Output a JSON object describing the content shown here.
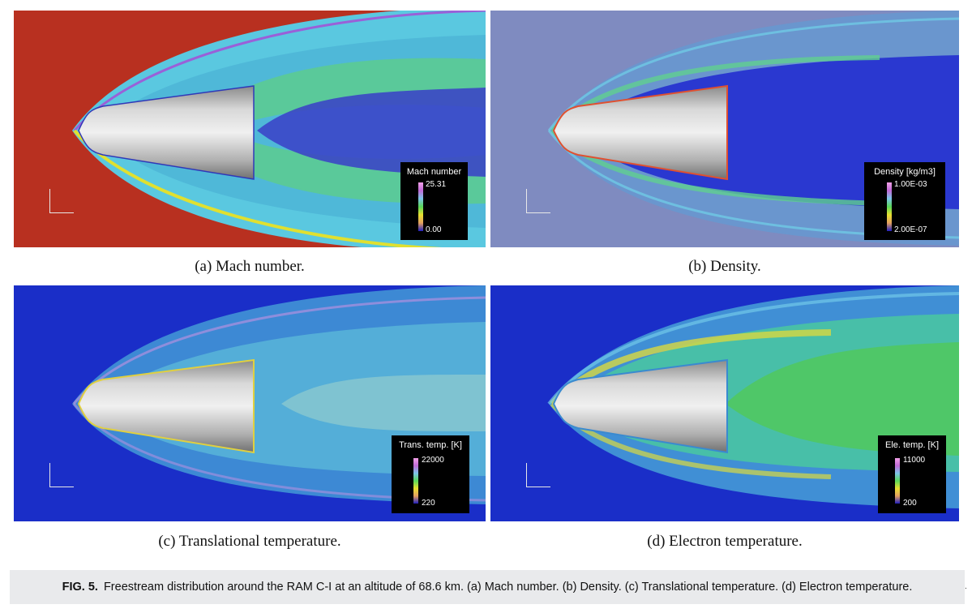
{
  "panels": [
    {
      "legend_title": "Mach number",
      "legend_max": "25.31",
      "legend_min": "0.00",
      "caption": "(a) Mach number."
    },
    {
      "legend_title": "Density [kg/m3]",
      "legend_max": "1.00E-03",
      "legend_min": "2.00E-07",
      "caption": "(b) Density."
    },
    {
      "legend_title": "Trans. temp. [K]",
      "legend_max": "22000",
      "legend_min": "220",
      "caption": "(c) Translational temperature."
    },
    {
      "legend_title": "Ele. temp. [K]",
      "legend_max": "11000",
      "legend_min": "200",
      "caption": "(d) Electron temperature."
    }
  ],
  "figure": {
    "label": "FIG. 5.",
    "text": "Freestream distribution around the RAM C-I at an altitude of 68.6 km. (a) Mach number. (b) Density. (c) Translational temperature. (d) Electron temperature."
  },
  "colors": {
    "mach_freestream": "#b83020",
    "density_freestream": "#7f8bc0",
    "temperature_freestream": "#1a2ec8",
    "caption_background": "#e9eaec"
  }
}
